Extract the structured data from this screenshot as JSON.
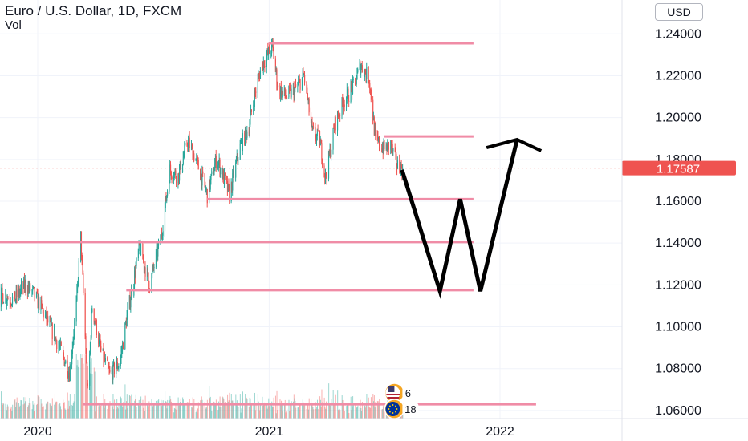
{
  "header": {
    "title": "Euro / U.S. Dollar, 1D, FXCM",
    "volume_label": "Vol",
    "currency_button": "USD"
  },
  "chart_data": {
    "type": "candlestick",
    "y_axis": {
      "ticks": [
        "1.24000",
        "1.22000",
        "1.20000",
        "1.18000",
        "1.16000",
        "1.14000",
        "1.12000",
        "1.10000",
        "1.08000",
        "1.06000"
      ],
      "range": [
        1.0454,
        1.2562
      ]
    },
    "x_axis": {
      "ticks": [
        "2020",
        "2021",
        "2022"
      ]
    },
    "last_price": "1.17587",
    "horizontal_levels": [
      {
        "date_from": "2020-12-31",
        "date_to": "2021-11-20",
        "price": 1.2355
      },
      {
        "date_from": "2021-07-01",
        "date_to": "2021-11-20",
        "price": 1.191
      },
      {
        "date_from": "2020-09-25",
        "date_to": "2021-11-20",
        "price": 1.161
      },
      {
        "date_from": "2019-08-01",
        "date_to": "2021-11-20",
        "price": 1.1405
      },
      {
        "date_from": "2020-05-20",
        "date_to": "2021-11-20",
        "price": 1.1175
      },
      {
        "date_from": "2020-03-13",
        "date_to": "2022-02-27",
        "price": 1.063
      }
    ],
    "forecast_path": [
      {
        "date": "2021-07-30",
        "price": 1.175
      },
      {
        "date": "2021-09-28",
        "price": 1.117
      },
      {
        "date": "2021-10-30",
        "price": 1.161
      },
      {
        "date": "2021-12-01",
        "price": 1.117
      },
      {
        "date": "2022-01-28",
        "price": 1.1895
      }
    ],
    "price_path": [
      [
        "2019-08-01",
        1.118
      ],
      [
        "2019-08-15",
        1.108
      ],
      [
        "2019-09-05",
        1.101
      ],
      [
        "2019-09-25",
        1.108
      ],
      [
        "2019-10-15",
        1.104
      ],
      [
        "2019-11-05",
        1.115
      ],
      [
        "2019-11-25",
        1.113
      ],
      [
        "2019-12-12",
        1.12
      ],
      [
        "2019-12-25",
        1.116
      ],
      [
        "2020-01-08",
        1.108
      ],
      [
        "2020-01-20",
        1.1
      ],
      [
        "2020-02-05",
        1.09
      ],
      [
        "2020-02-20",
        1.078
      ],
      [
        "2020-03-02",
        1.11
      ],
      [
        "2020-03-09",
        1.143
      ],
      [
        "2020-03-20",
        1.068
      ],
      [
        "2020-03-27",
        1.11
      ],
      [
        "2020-04-10",
        1.088
      ],
      [
        "2020-04-24",
        1.077
      ],
      [
        "2020-05-10",
        1.083
      ],
      [
        "2020-05-20",
        1.103
      ],
      [
        "2020-06-10",
        1.138
      ],
      [
        "2020-06-26",
        1.12
      ],
      [
        "2020-07-15",
        1.145
      ],
      [
        "2020-07-28",
        1.175
      ],
      [
        "2020-08-10",
        1.172
      ],
      [
        "2020-08-25",
        1.189
      ],
      [
        "2020-09-07",
        1.18
      ],
      [
        "2020-09-25",
        1.163
      ],
      [
        "2020-10-10",
        1.181
      ],
      [
        "2020-10-30",
        1.163
      ],
      [
        "2020-11-15",
        1.185
      ],
      [
        "2020-11-30",
        1.196
      ],
      [
        "2020-12-10",
        1.212
      ],
      [
        "2020-12-20",
        1.225
      ],
      [
        "2021-01-06",
        1.234
      ],
      [
        "2021-01-15",
        1.214
      ],
      [
        "2021-01-28",
        1.21
      ],
      [
        "2021-02-10",
        1.213
      ],
      [
        "2021-02-25",
        1.22
      ],
      [
        "2021-03-10",
        1.193
      ],
      [
        "2021-03-22",
        1.189
      ],
      [
        "2021-03-31",
        1.171
      ],
      [
        "2021-04-15",
        1.197
      ],
      [
        "2021-04-29",
        1.208
      ],
      [
        "2021-05-15",
        1.215
      ],
      [
        "2021-05-25",
        1.225
      ],
      [
        "2021-06-08",
        1.219
      ],
      [
        "2021-06-18",
        1.189
      ],
      [
        "2021-07-02",
        1.185
      ],
      [
        "2021-07-12",
        1.187
      ],
      [
        "2021-07-22",
        1.177
      ],
      [
        "2021-07-31",
        1.1759
      ]
    ],
    "volume_scale": 80,
    "event_markers": [
      {
        "date": "2021-07-18",
        "label": "6"
      },
      {
        "date": "2021-07-18",
        "label": "18"
      }
    ],
    "colors": {
      "up": "#26a69a",
      "down": "#ef5350",
      "level": "#f08ca6",
      "forecast": "#000000",
      "last_price_bg": "#ef5350",
      "grid": "#f0f3fa",
      "axis_text": "#131722"
    }
  }
}
